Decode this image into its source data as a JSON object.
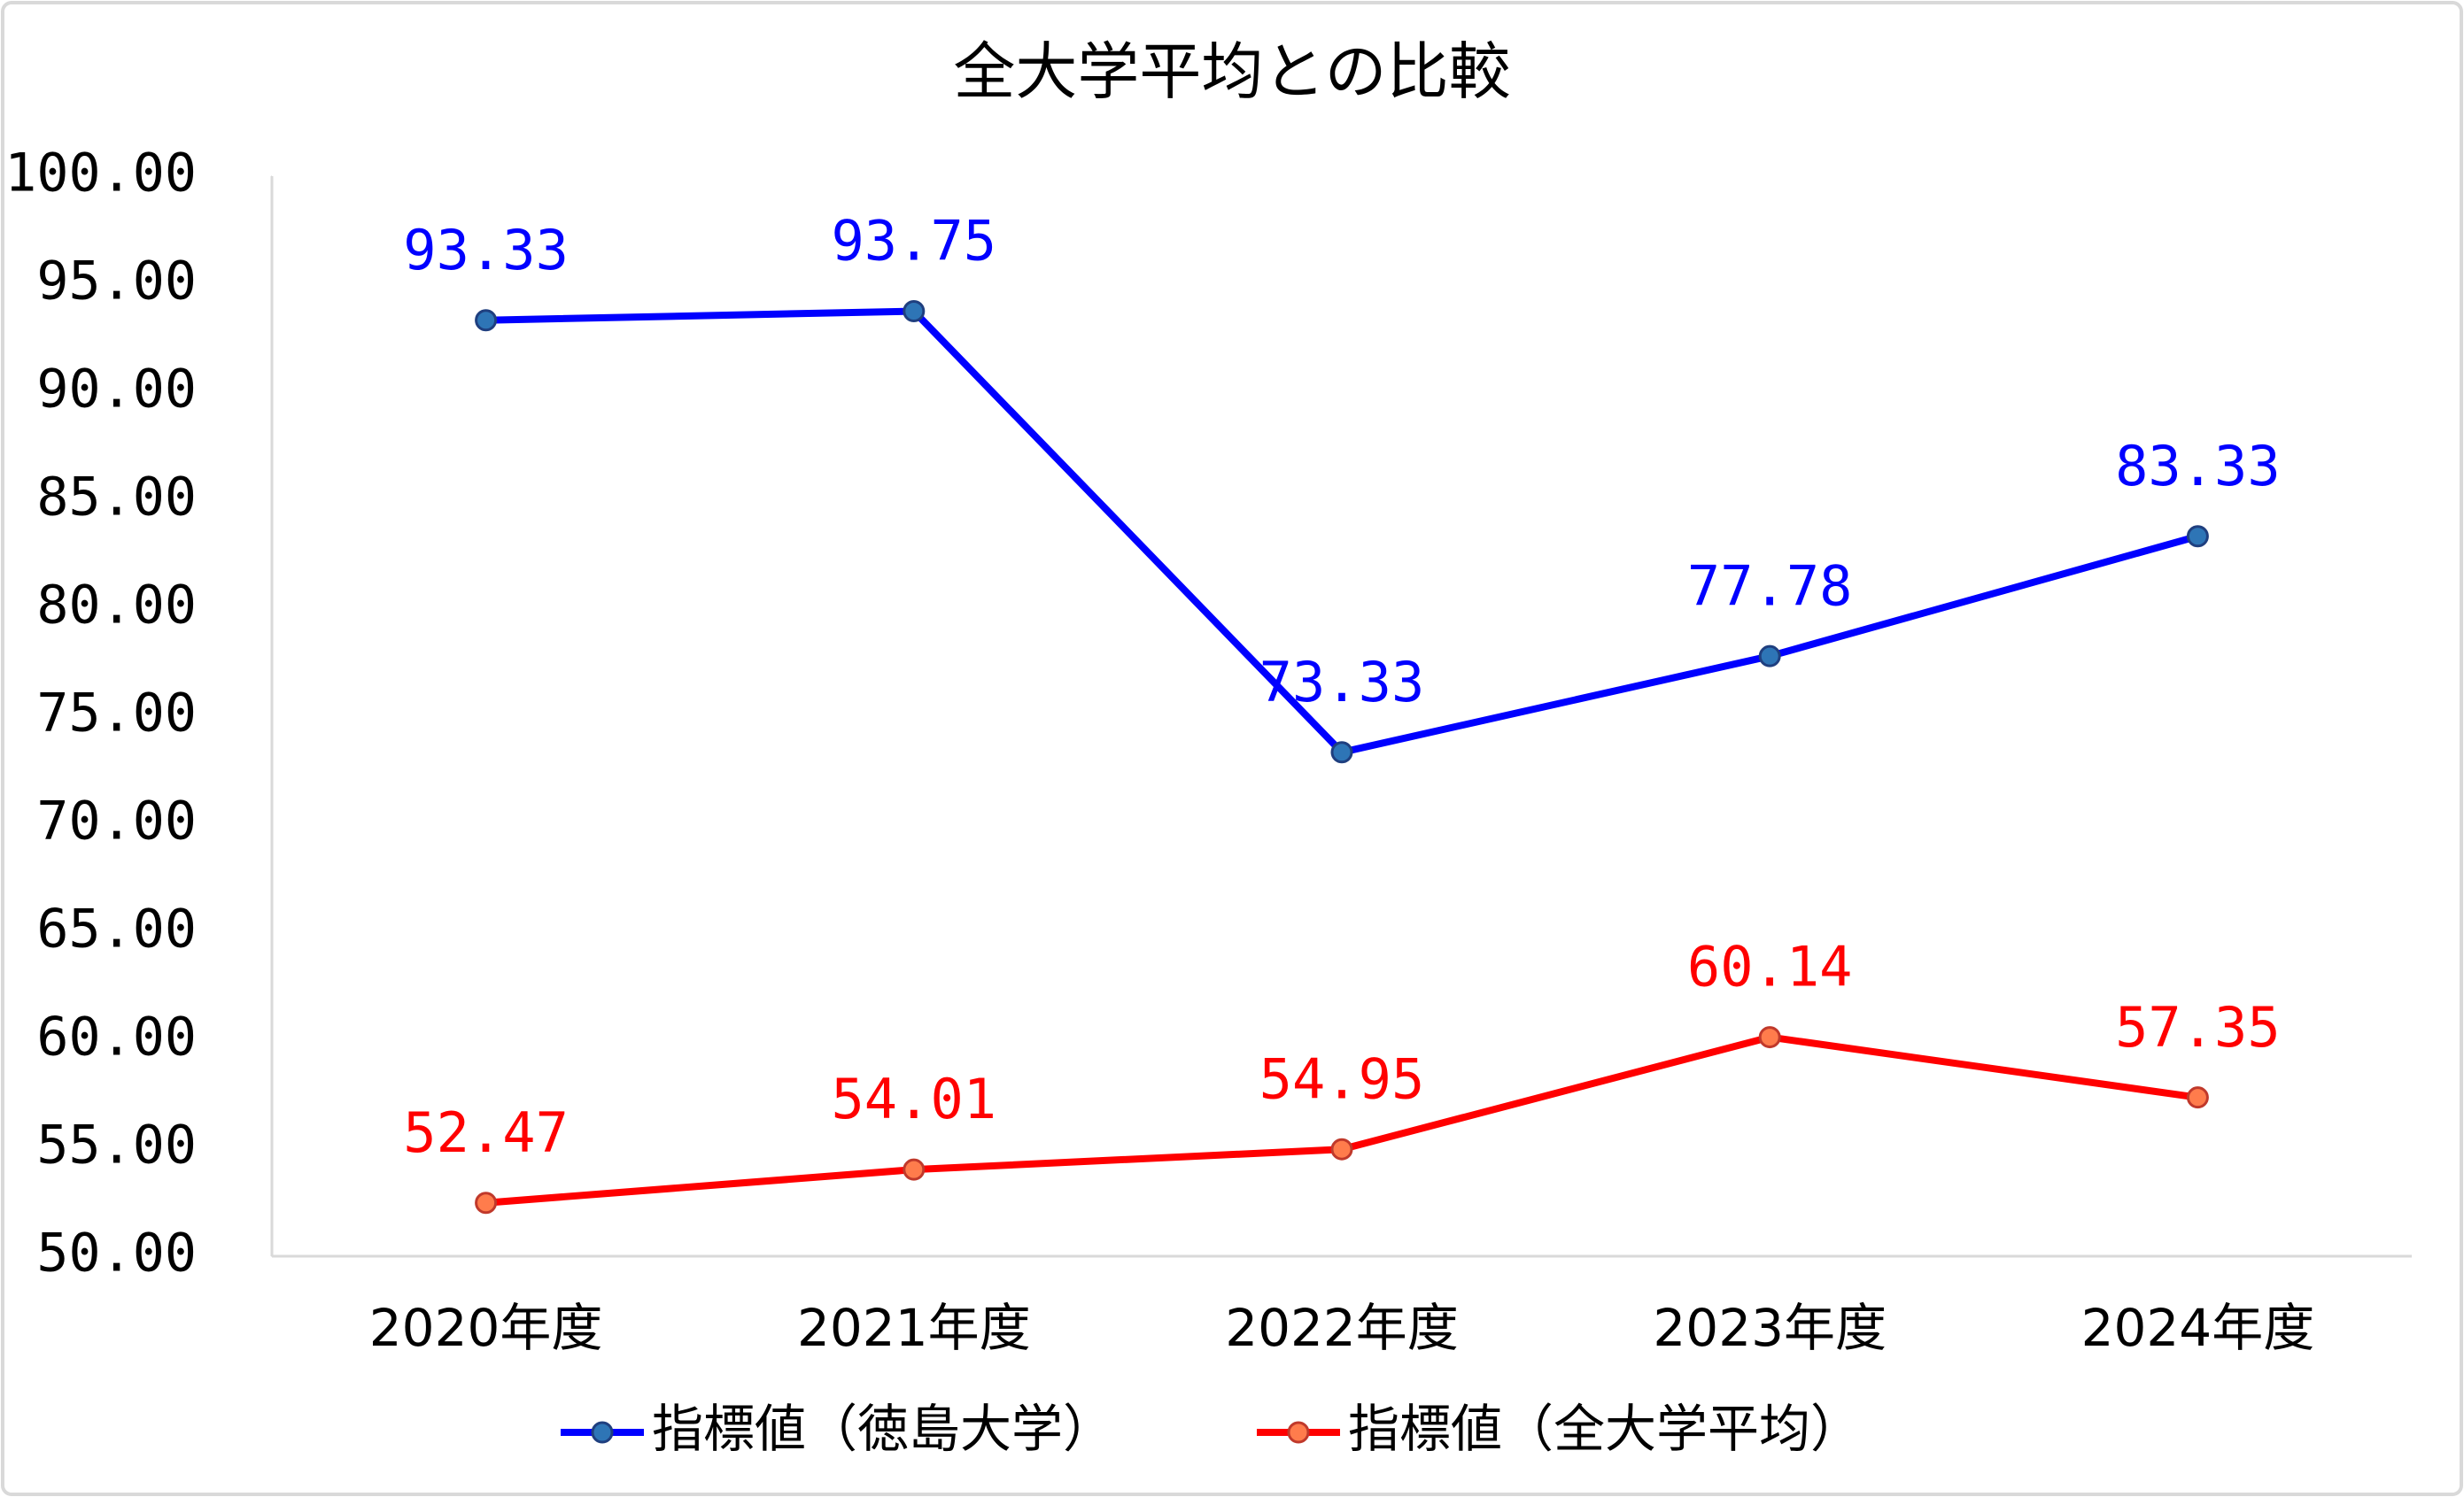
{
  "chart_data": {
    "type": "line",
    "title": "全大学平均との比較",
    "categories": [
      "2020年度",
      "2021年度",
      "2022年度",
      "2023年度",
      "2024年度"
    ],
    "series": [
      {
        "name": "指標値（徳島大学）",
        "color": "#0000ff",
        "values": [
          93.33,
          93.75,
          73.33,
          77.78,
          83.33
        ]
      },
      {
        "name": "指標値（全大学平均）",
        "color": "#ff0000",
        "values": [
          52.47,
          54.01,
          54.95,
          60.14,
          57.35
        ]
      }
    ],
    "ylim": [
      50,
      100
    ],
    "yticks": [
      {
        "value": 50,
        "label": "50.00"
      },
      {
        "value": 55,
        "label": "55.00"
      },
      {
        "value": 60,
        "label": "60.00"
      },
      {
        "value": 65,
        "label": "65.00"
      },
      {
        "value": 70,
        "label": "70.00"
      },
      {
        "value": 75,
        "label": "75.00"
      },
      {
        "value": 80,
        "label": "80.00"
      },
      {
        "value": 85,
        "label": "85.00"
      },
      {
        "value": 90,
        "label": "90.00"
      },
      {
        "value": 95,
        "label": "95.00"
      },
      {
        "value": 100,
        "label": "100.00"
      }
    ],
    "grid": false,
    "legend": "bottom"
  }
}
